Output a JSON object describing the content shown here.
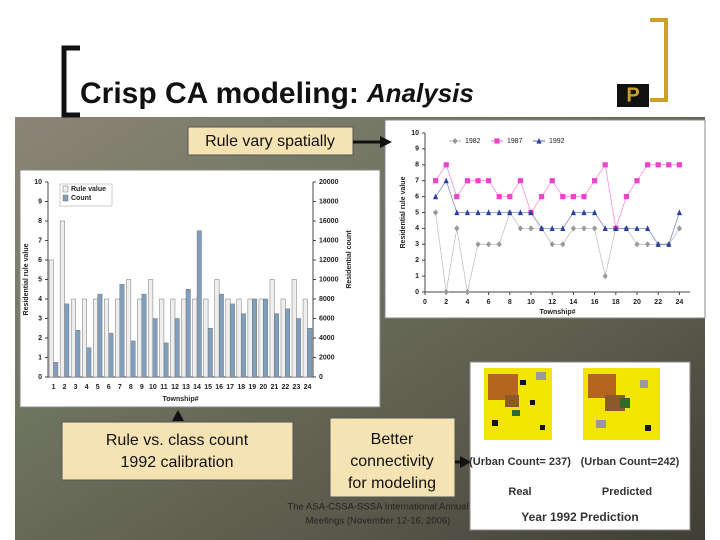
{
  "title": {
    "main": "Crisp CA modeling:",
    "emphasis": "Analysis"
  },
  "logo": "P",
  "callouts": {
    "spatial": "Rule vary spatially",
    "calibration": [
      "Rule vs. class count",
      "1992 calibration"
    ],
    "connectivity": [
      "Better",
      "connectivity",
      "for modeling"
    ]
  },
  "footer": [
    "The ASA-CSSA-SSSA International Annual",
    "Meetings (November 12-16, 2006)"
  ],
  "figure": {
    "real_count": "(Urban Count= 237)",
    "predicted_count": "(Urban Count=242)",
    "real_label": "Real",
    "predicted_label": "Predicted",
    "caption": "Year 1992 Prediction"
  },
  "chart_data": [
    {
      "type": "bar",
      "categories": [
        "1",
        "2",
        "3",
        "4",
        "5",
        "6",
        "7",
        "8",
        "9",
        "10",
        "11",
        "12",
        "13",
        "14",
        "15",
        "16",
        "17",
        "18",
        "19",
        "20",
        "21",
        "22",
        "23",
        "24"
      ],
      "series": [
        {
          "name": "Rule value",
          "color": "#eeeeee",
          "values": [
            6,
            8,
            4,
            4,
            4,
            4,
            4,
            5,
            4,
            5,
            4,
            4,
            4,
            4,
            4,
            5,
            4,
            4,
            4,
            4,
            5,
            4,
            5,
            4
          ]
        },
        {
          "name": "Count",
          "color": "#7f9fbd",
          "axis": "y2",
          "values": [
            1500,
            7500,
            4800,
            3000,
            8500,
            4500,
            9500,
            3700,
            8500,
            6000,
            3500,
            6000,
            9000,
            15000,
            5000,
            8500,
            7500,
            6500,
            8000,
            8000,
            6500,
            7000,
            6000,
            5000
          ]
        }
      ],
      "ylim": [
        0,
        10
      ],
      "yticks": [
        0,
        1,
        2,
        3,
        4,
        5,
        6,
        7,
        8,
        9,
        10
      ],
      "y2lim": [
        0,
        20000
      ],
      "y2ticks": [
        0,
        2000,
        4000,
        6000,
        8000,
        10000,
        12000,
        14000,
        16000,
        18000,
        20000
      ],
      "y_label": "Residential rule value",
      "y2_label": "Residential count",
      "x_label": "Township#",
      "legend": "top-left"
    },
    {
      "type": "line",
      "x": [
        1,
        2,
        3,
        4,
        5,
        6,
        7,
        8,
        9,
        10,
        11,
        12,
        13,
        14,
        15,
        16,
        17,
        18,
        19,
        20,
        21,
        22,
        23,
        24
      ],
      "series": [
        {
          "name": "1982",
          "color": "#999999",
          "marker": "diamond",
          "values": [
            5,
            0,
            4,
            0,
            3,
            3,
            3,
            5,
            4,
            4,
            4,
            3,
            3,
            4,
            4,
            4,
            1,
            4,
            4,
            3,
            3,
            3,
            3,
            4
          ]
        },
        {
          "name": "1987",
          "color": "#ee44cc",
          "marker": "square",
          "values": [
            7,
            8,
            6,
            7,
            7,
            7,
            6,
            6,
            7,
            5,
            6,
            7,
            6,
            6,
            6,
            7,
            8,
            4,
            6,
            7,
            8,
            8,
            8,
            8
          ]
        },
        {
          "name": "1992",
          "color": "#2a3f9e",
          "marker": "triangle",
          "values": [
            6,
            7,
            5,
            5,
            5,
            5,
            5,
            5,
            5,
            5,
            4,
            4,
            4,
            5,
            5,
            5,
            4,
            4,
            4,
            4,
            4,
            3,
            3,
            5
          ]
        }
      ],
      "xlim": [
        0,
        25
      ],
      "xticks": [
        0,
        2,
        4,
        6,
        8,
        10,
        12,
        14,
        16,
        18,
        20,
        22,
        24
      ],
      "ylim": [
        0,
        10
      ],
      "yticks": [
        0,
        1,
        2,
        3,
        4,
        5,
        6,
        7,
        8,
        9,
        10
      ],
      "y_label": "Residential rule value",
      "x_label": "Township#",
      "legend": "top"
    }
  ]
}
